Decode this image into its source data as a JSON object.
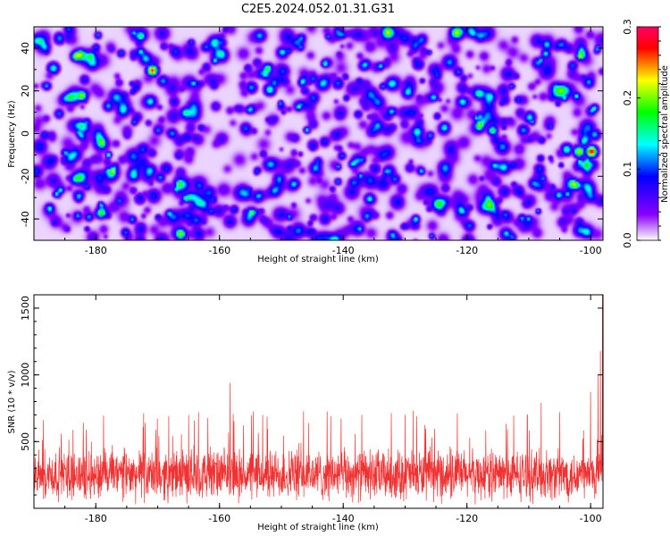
{
  "title": "C2E5.2024.052.01.31.G31",
  "chart_data": [
    {
      "type": "heatmap",
      "xlabel": "Height of straight line (km)",
      "ylabel": "Frequency (Hz)",
      "xlim": [
        -190,
        -98
      ],
      "ylim": [
        -50,
        50
      ],
      "xticks": [
        -180,
        -160,
        -140,
        -120,
        -100
      ],
      "yticks": [
        -40,
        -20,
        0,
        20,
        40
      ],
      "colorbar": {
        "label": "Normalized spectral amplitude",
        "range": [
          0.0,
          0.3
        ],
        "ticks": [
          0.0,
          0.1,
          0.2,
          0.3
        ],
        "colors": [
          "#ffffff",
          "#8800ff",
          "#0000ff",
          "#00ffff",
          "#00ff00",
          "#ffff00",
          "#ff0000",
          "#ff0066"
        ]
      },
      "background_level": 0.02,
      "hotspots": [
        {
          "x": -171,
          "y": 30,
          "value": 0.27
        },
        {
          "x": -187,
          "y": 31,
          "value": 0.15
        },
        {
          "x": -181,
          "y": 36,
          "value": 0.13
        },
        {
          "x": -186,
          "y": 45,
          "value": 0.12
        },
        {
          "x": -152,
          "y": 21,
          "value": 0.16
        },
        {
          "x": -155,
          "y": 22,
          "value": 0.12
        },
        {
          "x": -160,
          "y": 43,
          "value": 0.11
        },
        {
          "x": -141,
          "y": 24,
          "value": 0.11
        },
        {
          "x": -118,
          "y": 8,
          "value": 0.13
        },
        {
          "x": -110,
          "y": 8,
          "value": 0.14
        },
        {
          "x": -111,
          "y": 2,
          "value": 0.12
        },
        {
          "x": -100,
          "y": -8,
          "value": 0.29
        },
        {
          "x": -102,
          "y": -8,
          "value": 0.22
        },
        {
          "x": -104,
          "y": -7,
          "value": 0.16
        },
        {
          "x": -99.5,
          "y": 0,
          "value": 0.13
        },
        {
          "x": -185,
          "y": -12,
          "value": 0.08
        },
        {
          "x": -173,
          "y": -30,
          "value": 0.09
        },
        {
          "x": -135,
          "y": -16,
          "value": 0.09
        },
        {
          "x": -128,
          "y": 33,
          "value": 0.1
        },
        {
          "x": -133,
          "y": 9,
          "value": 0.09
        },
        {
          "x": -145,
          "y": -5,
          "value": 0.08
        }
      ]
    },
    {
      "type": "line",
      "xlabel": "Height of straight line (km)",
      "ylabel": "SNR (10 * v/v)",
      "xlim": [
        -190,
        -98
      ],
      "ylim": [
        0,
        1600
      ],
      "xticks": [
        -180,
        -160,
        -140,
        -120,
        -100
      ],
      "yticks": [
        500,
        1000,
        1500
      ],
      "color": "#f03232",
      "noise": {
        "baseline": 250,
        "spread": 150,
        "peak_max": 950
      },
      "peaks": [
        {
          "x": -188.5,
          "y": 660
        },
        {
          "x": -182,
          "y": 640
        },
        {
          "x": -172,
          "y": 640
        },
        {
          "x": -165,
          "y": 700
        },
        {
          "x": -158.3,
          "y": 940
        },
        {
          "x": -153,
          "y": 700
        },
        {
          "x": -142,
          "y": 690
        },
        {
          "x": -137,
          "y": 700
        },
        {
          "x": -130,
          "y": 700
        },
        {
          "x": -108,
          "y": 790
        },
        {
          "x": -105,
          "y": 720
        },
        {
          "x": -100,
          "y": 870
        },
        {
          "x": -98.8,
          "y": 1000
        },
        {
          "x": -98.4,
          "y": 1180
        },
        {
          "x": -98.1,
          "y": 1600
        }
      ]
    }
  ]
}
